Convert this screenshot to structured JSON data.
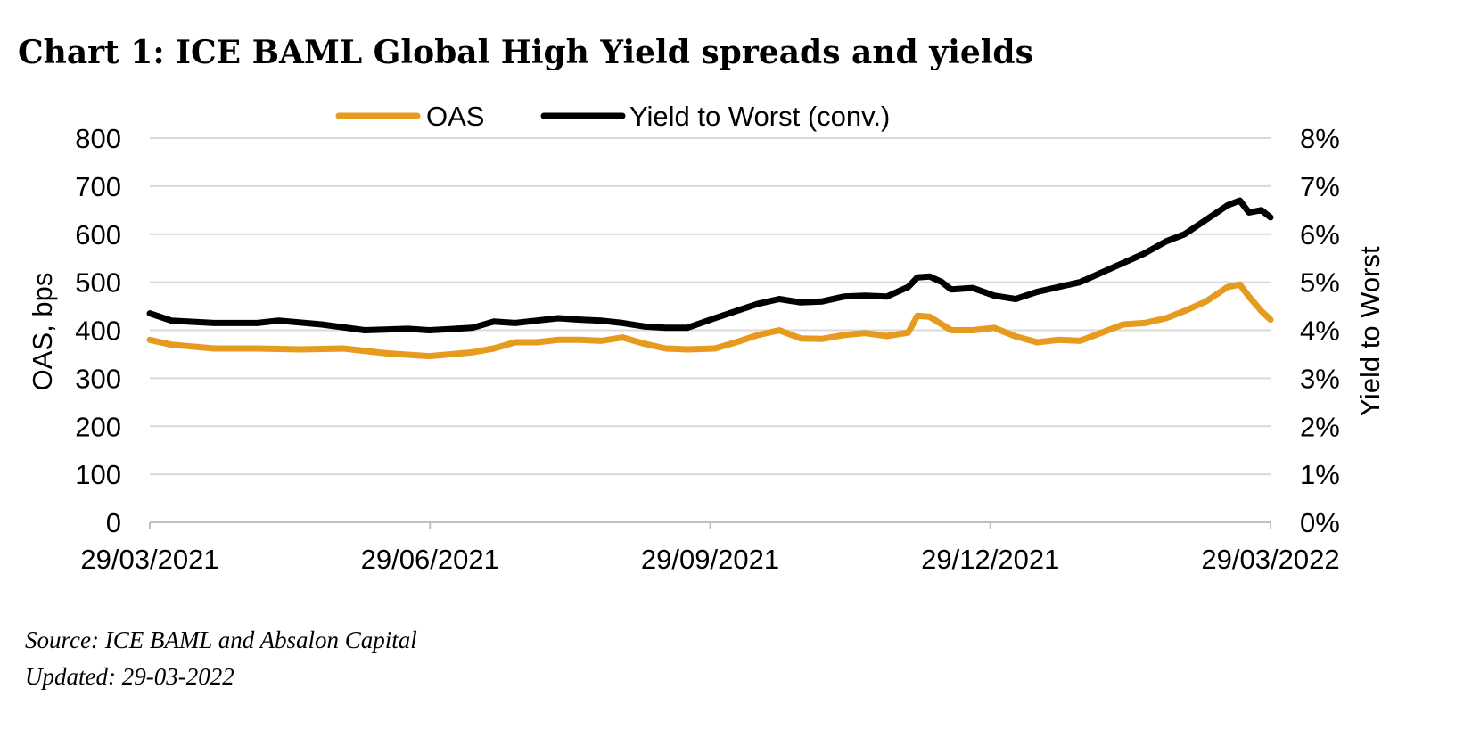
{
  "title": "Chart 1: ICE BAML Global High Yield spreads and yields",
  "source": "Source: ICE BAML and Absalon Capital",
  "updated": "Updated: 29-03-2022",
  "chart_data": {
    "type": "line",
    "title": "Chart 1: ICE BAML Global High Yield spreads and yields",
    "legend_position": "top-center",
    "grid": true,
    "x_axis": {
      "ticks": [
        "29/03/2021",
        "29/06/2021",
        "29/09/2021",
        "29/12/2021",
        "29/03/2022"
      ],
      "range": [
        "2021-03-29",
        "2022-03-29"
      ]
    },
    "y_left": {
      "label": "OAS, bps",
      "range": [
        0,
        800
      ],
      "ticks": [
        "0",
        "100",
        "200",
        "300",
        "400",
        "500",
        "600",
        "700",
        "800"
      ]
    },
    "y_right": {
      "label": "Yield to Worst",
      "range": [
        0,
        8
      ],
      "ticks": [
        "0%",
        "1%",
        "2%",
        "3%",
        "4%",
        "5%",
        "6%",
        "7%",
        "8%"
      ]
    },
    "series": [
      {
        "name": "OAS",
        "axis": "left",
        "color": "#E69A1E",
        "points": [
          [
            "2021-03-29",
            380
          ],
          [
            "2021-04-05",
            370
          ],
          [
            "2021-04-19",
            362
          ],
          [
            "2021-05-03",
            362
          ],
          [
            "2021-05-17",
            360
          ],
          [
            "2021-05-31",
            362
          ],
          [
            "2021-06-14",
            352
          ],
          [
            "2021-06-28",
            346
          ],
          [
            "2021-07-12",
            354
          ],
          [
            "2021-07-19",
            362
          ],
          [
            "2021-07-26",
            375
          ],
          [
            "2021-08-02",
            375
          ],
          [
            "2021-08-09",
            380
          ],
          [
            "2021-08-16",
            380
          ],
          [
            "2021-08-23",
            378
          ],
          [
            "2021-08-30",
            385
          ],
          [
            "2021-09-06",
            372
          ],
          [
            "2021-09-13",
            362
          ],
          [
            "2021-09-20",
            360
          ],
          [
            "2021-09-29",
            362
          ],
          [
            "2021-10-06",
            375
          ],
          [
            "2021-10-13",
            390
          ],
          [
            "2021-10-20",
            400
          ],
          [
            "2021-10-27",
            383
          ],
          [
            "2021-11-03",
            382
          ],
          [
            "2021-11-10",
            390
          ],
          [
            "2021-11-17",
            394
          ],
          [
            "2021-11-24",
            388
          ],
          [
            "2021-12-01",
            395
          ],
          [
            "2021-12-04",
            430
          ],
          [
            "2021-12-08",
            428
          ],
          [
            "2021-12-12",
            412
          ],
          [
            "2021-12-15",
            400
          ],
          [
            "2021-12-22",
            400
          ],
          [
            "2021-12-29",
            405
          ],
          [
            "2022-01-05",
            387
          ],
          [
            "2022-01-12",
            375
          ],
          [
            "2022-01-19",
            380
          ],
          [
            "2022-01-26",
            378
          ],
          [
            "2022-02-02",
            395
          ],
          [
            "2022-02-09",
            412
          ],
          [
            "2022-02-16",
            415
          ],
          [
            "2022-02-23",
            425
          ],
          [
            "2022-03-01",
            440
          ],
          [
            "2022-03-08",
            460
          ],
          [
            "2022-03-15",
            490
          ],
          [
            "2022-03-19",
            495
          ],
          [
            "2022-03-22",
            470
          ],
          [
            "2022-03-26",
            440
          ],
          [
            "2022-03-29",
            422
          ]
        ]
      },
      {
        "name": "Yield to Worst (conv.)",
        "axis": "right",
        "color": "#000000",
        "points": [
          [
            "2021-03-29",
            4.35
          ],
          [
            "2021-04-05",
            4.2
          ],
          [
            "2021-04-19",
            4.15
          ],
          [
            "2021-05-03",
            4.15
          ],
          [
            "2021-05-10",
            4.2
          ],
          [
            "2021-05-24",
            4.12
          ],
          [
            "2021-06-07",
            4.0
          ],
          [
            "2021-06-21",
            4.03
          ],
          [
            "2021-06-28",
            4.0
          ],
          [
            "2021-07-12",
            4.05
          ],
          [
            "2021-07-19",
            4.18
          ],
          [
            "2021-07-26",
            4.15
          ],
          [
            "2021-08-02",
            4.2
          ],
          [
            "2021-08-09",
            4.25
          ],
          [
            "2021-08-16",
            4.22
          ],
          [
            "2021-08-23",
            4.2
          ],
          [
            "2021-08-30",
            4.15
          ],
          [
            "2021-09-06",
            4.08
          ],
          [
            "2021-09-13",
            4.05
          ],
          [
            "2021-09-20",
            4.05
          ],
          [
            "2021-09-29",
            4.25
          ],
          [
            "2021-10-06",
            4.4
          ],
          [
            "2021-10-13",
            4.55
          ],
          [
            "2021-10-20",
            4.65
          ],
          [
            "2021-10-27",
            4.58
          ],
          [
            "2021-11-03",
            4.6
          ],
          [
            "2021-11-10",
            4.7
          ],
          [
            "2021-11-17",
            4.72
          ],
          [
            "2021-11-24",
            4.7
          ],
          [
            "2021-12-01",
            4.9
          ],
          [
            "2021-12-04",
            5.1
          ],
          [
            "2021-12-08",
            5.12
          ],
          [
            "2021-12-12",
            5.0
          ],
          [
            "2021-12-15",
            4.85
          ],
          [
            "2021-12-22",
            4.88
          ],
          [
            "2021-12-29",
            4.72
          ],
          [
            "2022-01-05",
            4.65
          ],
          [
            "2022-01-12",
            4.8
          ],
          [
            "2022-01-19",
            4.9
          ],
          [
            "2022-01-26",
            5.0
          ],
          [
            "2022-02-02",
            5.2
          ],
          [
            "2022-02-09",
            5.4
          ],
          [
            "2022-02-16",
            5.6
          ],
          [
            "2022-02-23",
            5.85
          ],
          [
            "2022-03-01",
            6.0
          ],
          [
            "2022-03-08",
            6.3
          ],
          [
            "2022-03-15",
            6.6
          ],
          [
            "2022-03-19",
            6.7
          ],
          [
            "2022-03-22",
            6.45
          ],
          [
            "2022-03-26",
            6.5
          ],
          [
            "2022-03-29",
            6.35
          ]
        ]
      }
    ]
  }
}
